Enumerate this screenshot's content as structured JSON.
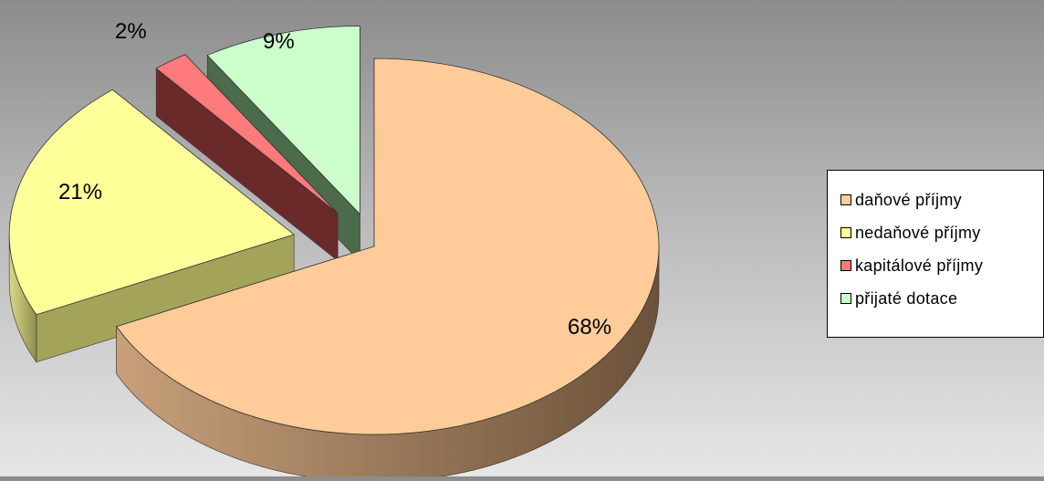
{
  "chart_data": {
    "type": "pie",
    "title": "",
    "slices": [
      {
        "label": "daňové příjmy",
        "value": 68,
        "display": "68%",
        "color": "#ffcc99",
        "side_color": "#8b6a4a"
      },
      {
        "label": "nedaňové příjmy",
        "value": 21,
        "display": "21%",
        "color": "#ffff99",
        "side_color": "#a3a35a"
      },
      {
        "label": "kapitálové příjmy",
        "value": 2,
        "display": "2%",
        "color": "#ff7b7b",
        "side_color": "#6a2a2a"
      },
      {
        "label": "přijaté dotace",
        "value": 9,
        "display": "9%",
        "color": "#ccffcc",
        "side_color": "#4b6b4b"
      }
    ],
    "legend_position": "right",
    "style": "3d-exploded"
  }
}
